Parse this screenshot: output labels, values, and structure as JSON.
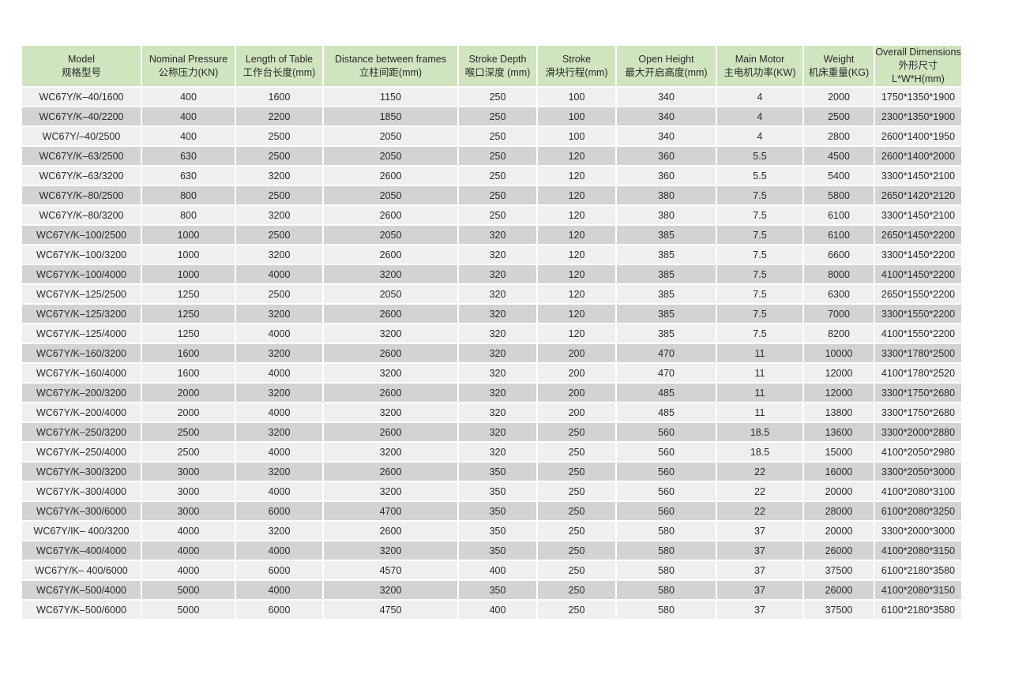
{
  "colors": {
    "header_bg": "#cfe4bf",
    "row_light": "#efefef",
    "row_dark": "#d3d3d3"
  },
  "table": {
    "headers": [
      {
        "en": "Model",
        "zh": "规格型号"
      },
      {
        "en": "Nominal Pressure",
        "zh": "公称压力(KN)"
      },
      {
        "en": "Length of Table",
        "zh": "工作台长度(mm)"
      },
      {
        "en": "Distance between frames",
        "zh": "立柱间距(mm)"
      },
      {
        "en": "Stroke Depth",
        "zh": "喉口深度 (mm)"
      },
      {
        "en": "Stroke",
        "zh": "滑块行程(mm)"
      },
      {
        "en": "Open Height",
        "zh": "最大开启高度(mm)"
      },
      {
        "en": "Main Motor",
        "zh": "主电机功率(KW)"
      },
      {
        "en": "Weight",
        "zh": "机床重量(KG)"
      },
      {
        "en": "Overall Dimensions",
        "zh": "外形尺寸L*W*H(mm)"
      }
    ],
    "rows": [
      [
        "WC67Y/K–40/1600",
        "400",
        "1600",
        "1150",
        "250",
        "100",
        "340",
        "4",
        "2000",
        "1750*1350*1900"
      ],
      [
        "WC67Y/K–40/2200",
        "400",
        "2200",
        "1850",
        "250",
        "100",
        "340",
        "4",
        "2500",
        "2300*1350*1900"
      ],
      [
        "WC67Y/–40/2500",
        "400",
        "2500",
        "2050",
        "250",
        "100",
        "340",
        "4",
        "2800",
        "2600*1400*1950"
      ],
      [
        "WC67Y/K–63/2500",
        "630",
        "2500",
        "2050",
        "250",
        "120",
        "360",
        "5.5",
        "4500",
        "2600*1400*2000"
      ],
      [
        "WC67Y/K–63/3200",
        "630",
        "3200",
        "2600",
        "250",
        "120",
        "360",
        "5.5",
        "5400",
        "3300*1450*2100"
      ],
      [
        "WC67Y/K–80/2500",
        "800",
        "2500",
        "2050",
        "250",
        "120",
        "380",
        "7.5",
        "5800",
        "2650*1420*2120"
      ],
      [
        "WC67Y/K–80/3200",
        "800",
        "3200",
        "2600",
        "250",
        "120",
        "380",
        "7.5",
        "6100",
        "3300*1450*2100"
      ],
      [
        "WC67Y/K–100/2500",
        "1000",
        "2500",
        "2050",
        "320",
        "120",
        "385",
        "7.5",
        "6100",
        "2650*1450*2200"
      ],
      [
        "WC67Y/K–100/3200",
        "1000",
        "3200",
        "2600",
        "320",
        "120",
        "385",
        "7.5",
        "6600",
        "3300*1450*2200"
      ],
      [
        "WC67Y/K–100/4000",
        "1000",
        "4000",
        "3200",
        "320",
        "120",
        "385",
        "7.5",
        "8000",
        "4100*1450*2200"
      ],
      [
        "WC67Y/K–125/2500",
        "1250",
        "2500",
        "2050",
        "320",
        "120",
        "385",
        "7.5",
        "6300",
        "2650*1550*2200"
      ],
      [
        "WC67Y/K–125/3200",
        "1250",
        "3200",
        "2600",
        "320",
        "120",
        "385",
        "7.5",
        "7000",
        "3300*1550*2200"
      ],
      [
        "WC67Y/K–125/4000",
        "1250",
        "4000",
        "3200",
        "320",
        "120",
        "385",
        "7.5",
        "8200",
        "4100*1550*2200"
      ],
      [
        "WC67Y/K–160/3200",
        "1600",
        "3200",
        "2600",
        "320",
        "200",
        "470",
        "11",
        "10000",
        "3300*1780*2500"
      ],
      [
        "WC67Y/K–160/4000",
        "1600",
        "4000",
        "3200",
        "320",
        "200",
        "470",
        "11",
        "12000",
        "4100*1780*2520"
      ],
      [
        "WC67Y/K–200/3200",
        "2000",
        "3200",
        "2600",
        "320",
        "200",
        "485",
        "11",
        "12000",
        "3300*1750*2680"
      ],
      [
        "WC67Y/K–200/4000",
        "2000",
        "4000",
        "3200",
        "320",
        "200",
        "485",
        "11",
        "13800",
        "3300*1750*2680"
      ],
      [
        "WC67Y/K–250/3200",
        "2500",
        "3200",
        "2600",
        "320",
        "250",
        "560",
        "18.5",
        "13600",
        "3300*2000*2880"
      ],
      [
        "WC67Y/K–250/4000",
        "2500",
        "4000",
        "3200",
        "320",
        "250",
        "560",
        "18.5",
        "15000",
        "4100*2050*2980"
      ],
      [
        "WC67Y/K–300/3200",
        "3000",
        "3200",
        "2600",
        "350",
        "250",
        "560",
        "22",
        "16000",
        "3300*2050*3000"
      ],
      [
        "WC67Y/K–300/4000",
        "3000",
        "4000",
        "3200",
        "350",
        "250",
        "560",
        "22",
        "20000",
        "4100*2080*3100"
      ],
      [
        "WC67Y/K–300/6000",
        "3000",
        "6000",
        "4700",
        "350",
        "250",
        "560",
        "22",
        "28000",
        "6100*2080*3250"
      ],
      [
        "WC67Y/IK– 400/3200",
        "4000",
        "3200",
        "2600",
        "350",
        "250",
        "580",
        "37",
        "20000",
        "3300*2000*3000"
      ],
      [
        "WC67Y/K–400/4000",
        "4000",
        "4000",
        "3200",
        "350",
        "250",
        "580",
        "37",
        "26000",
        "4100*2080*3150"
      ],
      [
        "WC67Y/K– 400/6000",
        "4000",
        "6000",
        "4570",
        "400",
        "250",
        "580",
        "37",
        "37500",
        "6100*2180*3580"
      ],
      [
        "WC67Y/K–500/4000",
        "5000",
        "4000",
        "3200",
        "350",
        "250",
        "580",
        "37",
        "26000",
        "4100*2080*3150"
      ],
      [
        "WC67Y/K–500/6000",
        "5000",
        "6000",
        "4750",
        "400",
        "250",
        "580",
        "37",
        "37500",
        "6100*2180*3580"
      ]
    ]
  }
}
